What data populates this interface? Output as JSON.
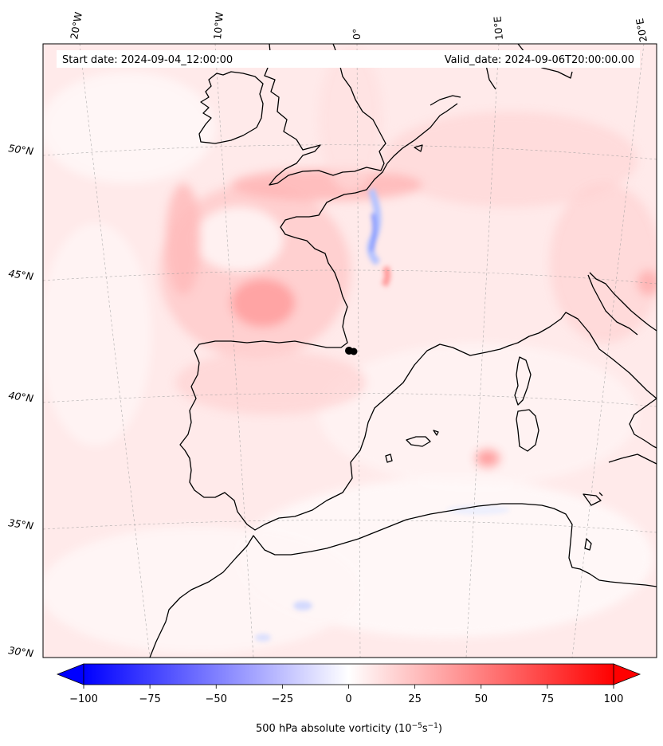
{
  "header": {
    "start_date": "Start date: 2024-09-04_12:00:00",
    "valid_date": "Valid_date: 2024-09-06T20:00:00.00"
  },
  "longitude_labels": [
    "20°W",
    "10°W",
    "0°",
    "10°E",
    "20°E"
  ],
  "latitude_labels": [
    "50°N",
    "45°N",
    "40°N",
    "35°N",
    "30°N"
  ],
  "colorbar": {
    "min": -100,
    "max": 100,
    "ticks": [
      "−100",
      "−75",
      "−50",
      "−25",
      "0",
      "25",
      "50",
      "75",
      "100"
    ],
    "label": "500 hPa absolute vorticity (10",
    "label_exp1": "−5",
    "label_mid": "s",
    "label_exp2": "−1",
    "label_end": ")",
    "neg_color": "#0000ff",
    "zero_color": "#ffffff",
    "pos_color": "#ff0000"
  },
  "colors": {
    "land_outline": "#000000",
    "field_base": "#ffeaea",
    "marker": "#000000"
  }
}
